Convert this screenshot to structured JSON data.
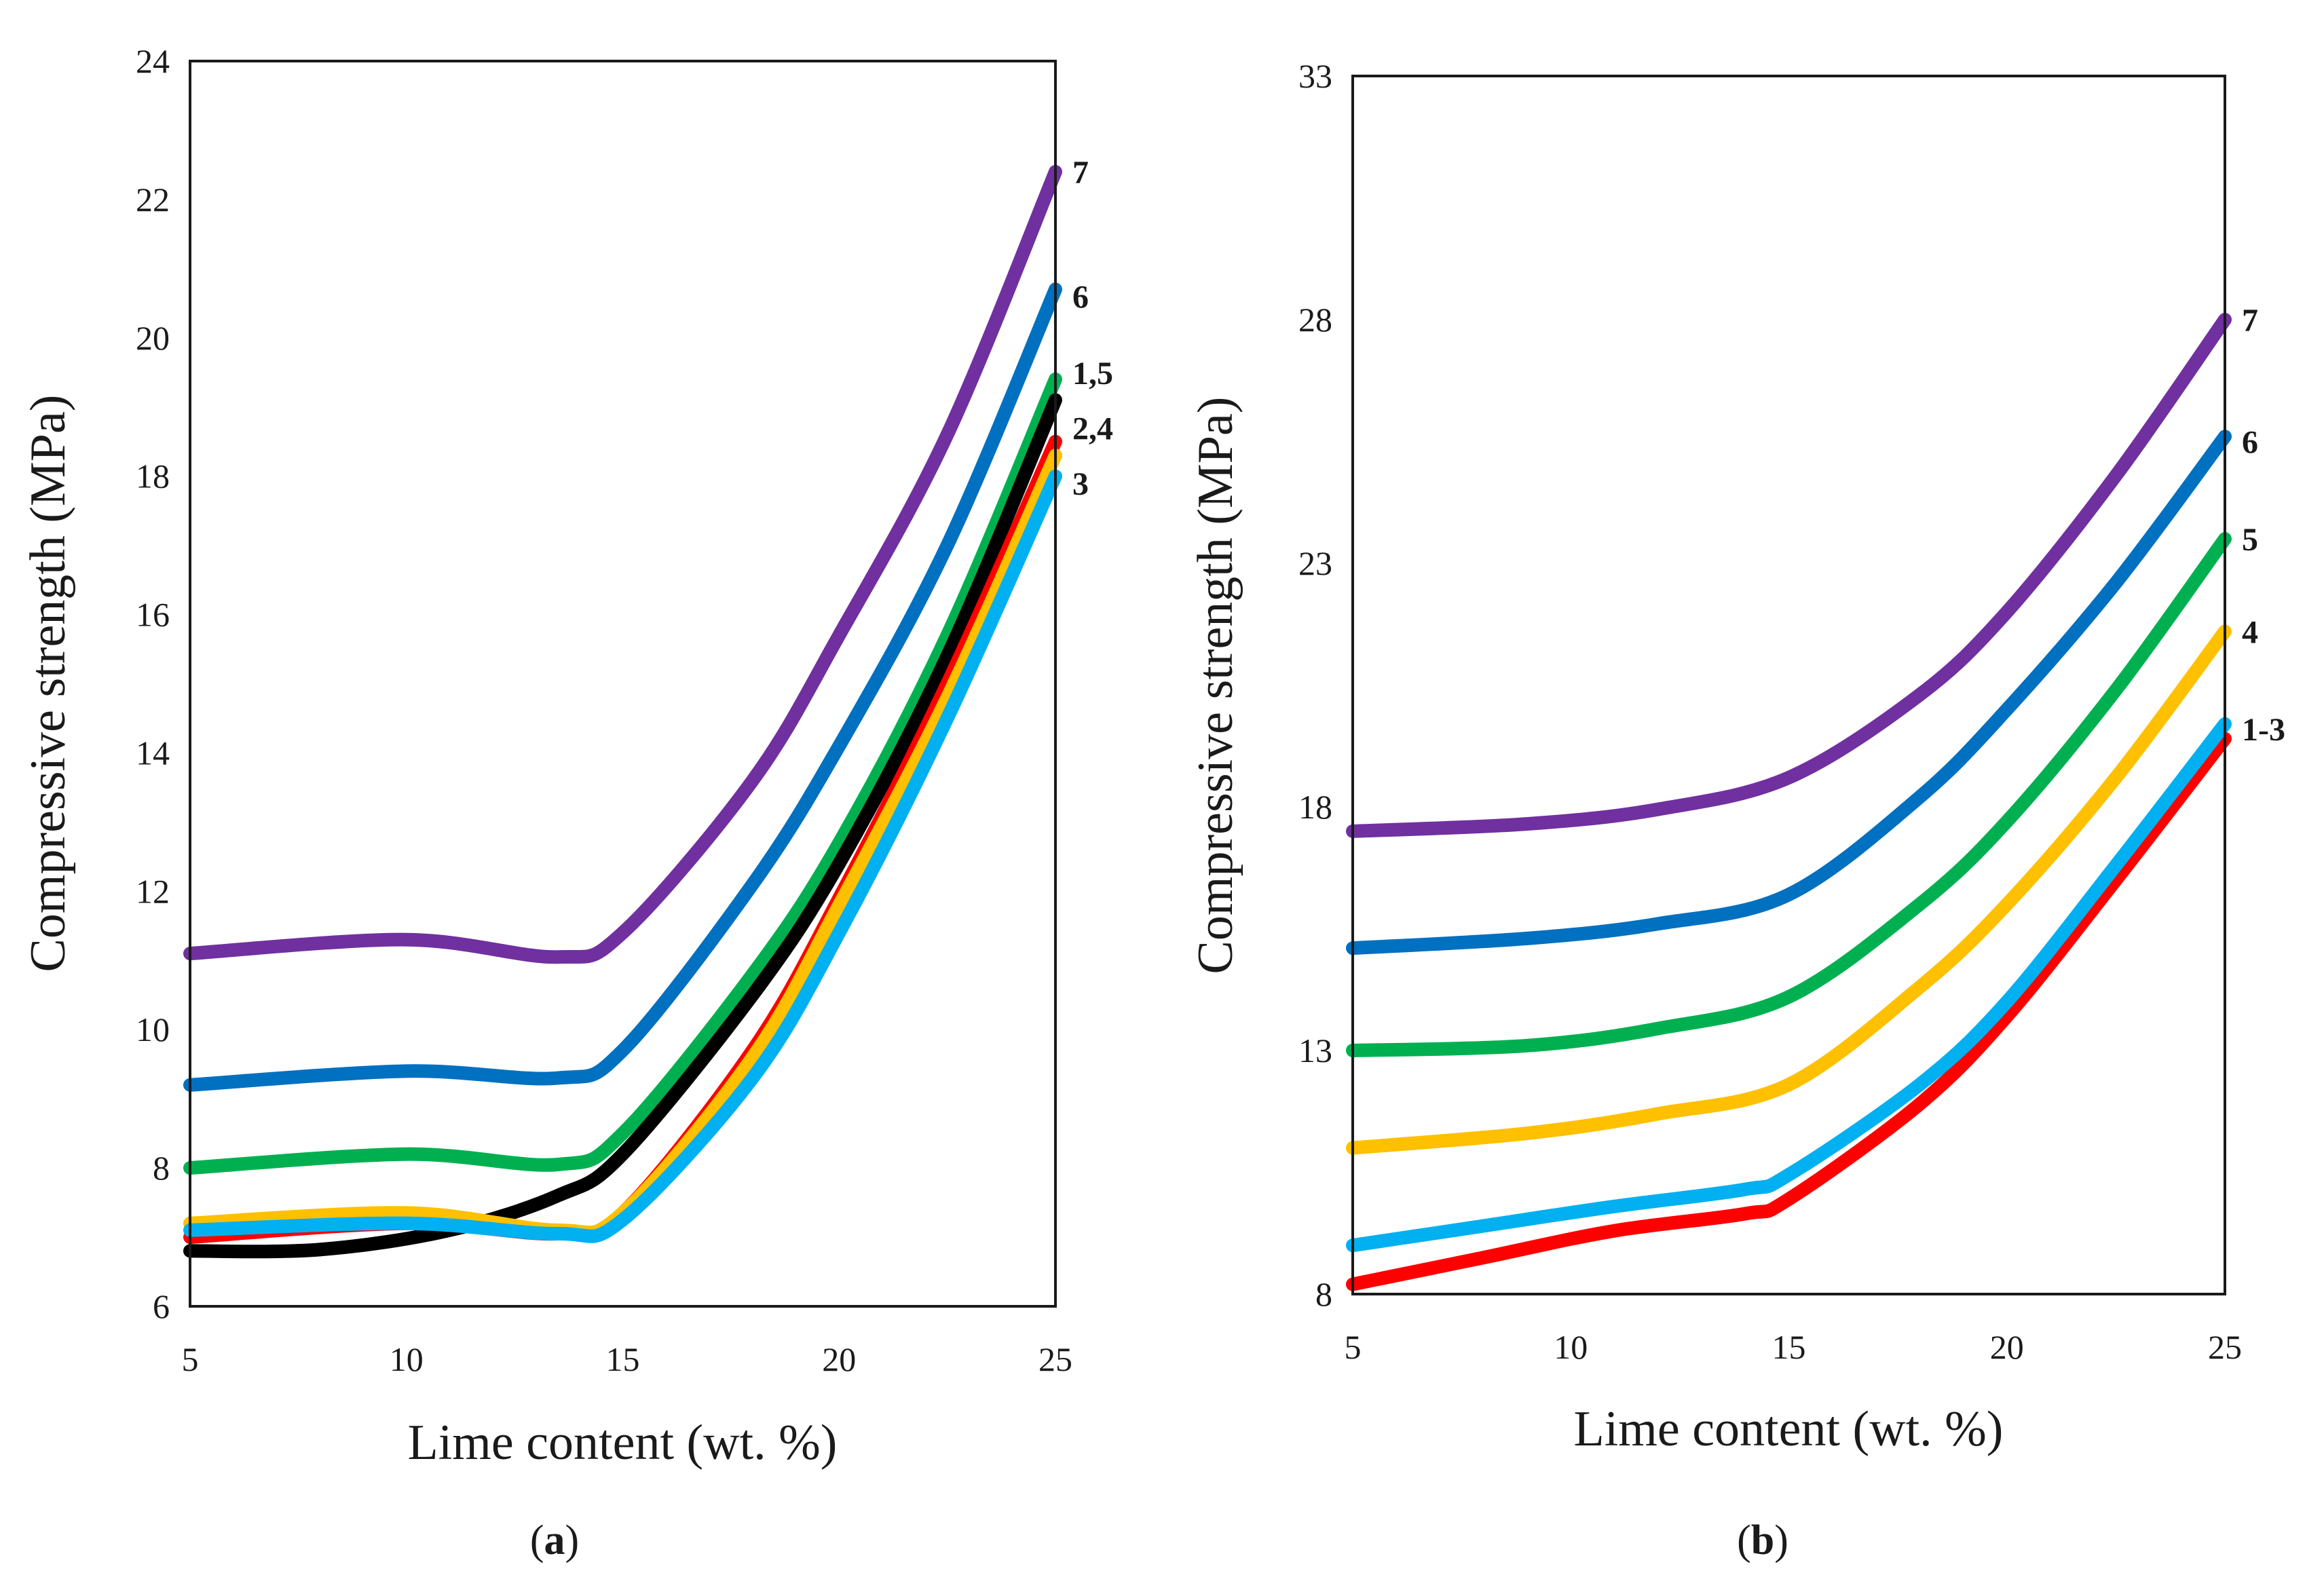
{
  "chart_data": [
    {
      "panel": "a",
      "type": "line",
      "xlabel": "Lime content (wt. %)",
      "ylabel": "Compressive strength (MPa)",
      "xlim": [
        5,
        25
      ],
      "ylim": [
        6,
        24
      ],
      "xticks": [
        5,
        10,
        15,
        20,
        25
      ],
      "yticks": [
        6,
        8,
        10,
        12,
        14,
        16,
        18,
        20,
        22,
        24
      ],
      "grid": false,
      "end_labels": [
        {
          "text": "7",
          "y": 22.4
        },
        {
          "text": "6",
          "y": 20.6
        },
        {
          "text": "1,5",
          "y": 19.5
        },
        {
          "text": "2,4",
          "y": 18.7
        },
        {
          "text": "3",
          "y": 17.9
        }
      ],
      "series": [
        {
          "color": "#7030a0",
          "x": [
            5,
            10,
            13.5,
            15,
            18,
            20,
            22.5,
            25
          ],
          "y": [
            11.1,
            11.3,
            11.05,
            11.4,
            13.6,
            15.7,
            18.6,
            22.4
          ]
        },
        {
          "color": "#0070c0",
          "x": [
            5,
            10,
            13.5,
            15,
            18,
            20,
            22.5,
            25
          ],
          "y": [
            9.2,
            9.4,
            9.3,
            9.7,
            12.1,
            14.1,
            17.0,
            20.7
          ]
        },
        {
          "color": "#00b050",
          "x": [
            5,
            10,
            13.5,
            15,
            18,
            20,
            22.5,
            25
          ],
          "y": [
            8.0,
            8.2,
            8.05,
            8.5,
            10.8,
            12.7,
            15.7,
            19.4
          ]
        },
        {
          "color": "#000000",
          "x": [
            5,
            8,
            11,
            13.5,
            15,
            18,
            20,
            22.5,
            25
          ],
          "y": [
            6.8,
            6.82,
            7.1,
            7.6,
            8.2,
            10.5,
            12.4,
            15.4,
            19.1
          ]
        },
        {
          "color": "#ff0000",
          "x": [
            5,
            10,
            13.5,
            15,
            18,
            20,
            22.5,
            25
          ],
          "y": [
            7.0,
            7.2,
            7.05,
            7.35,
            9.7,
            11.9,
            15.0,
            18.5
          ]
        },
        {
          "color": "#ffc000",
          "x": [
            5,
            10,
            13.5,
            15,
            18,
            20,
            22.5,
            25
          ],
          "y": [
            7.2,
            7.35,
            7.1,
            7.35,
            9.6,
            11.8,
            14.8,
            18.3
          ]
        },
        {
          "color": "#00b0f0",
          "x": [
            5,
            10,
            13.5,
            15,
            18,
            20,
            22.5,
            25
          ],
          "y": [
            7.1,
            7.2,
            7.05,
            7.25,
            9.3,
            11.4,
            14.5,
            18.0
          ]
        }
      ]
    },
    {
      "panel": "b",
      "type": "line",
      "xlabel": "Lime content (wt. %)",
      "ylabel": "Compressive strength (MPa)",
      "xlim": [
        5,
        25
      ],
      "ylim": [
        8,
        33
      ],
      "xticks": [
        5,
        10,
        15,
        20,
        25
      ],
      "yticks": [
        8,
        13,
        18,
        23,
        28,
        33
      ],
      "grid": false,
      "end_labels": [
        {
          "text": "7",
          "y": 28.0
        },
        {
          "text": "6",
          "y": 25.5
        },
        {
          "text": "5",
          "y": 23.5
        },
        {
          "text": "4",
          "y": 21.6
        },
        {
          "text": "1-3",
          "y": 19.6
        }
      ],
      "series": [
        {
          "color": "#7030a0",
          "x": [
            5,
            9,
            12,
            15,
            18,
            20,
            22.5,
            25
          ],
          "y": [
            17.5,
            17.65,
            17.95,
            18.6,
            20.3,
            22.0,
            24.8,
            28.0
          ]
        },
        {
          "color": "#0070c0",
          "x": [
            5,
            9,
            12,
            15,
            18,
            20,
            22.5,
            25
          ],
          "y": [
            15.1,
            15.3,
            15.6,
            16.2,
            18.2,
            20.0,
            22.6,
            25.6
          ]
        },
        {
          "color": "#00b050",
          "x": [
            5,
            9,
            12,
            15,
            18,
            20,
            22.5,
            25
          ],
          "y": [
            13.0,
            13.1,
            13.45,
            14.1,
            16.0,
            17.7,
            20.4,
            23.5
          ]
        },
        {
          "color": "#ffc000",
          "x": [
            5,
            9,
            12,
            15,
            18,
            20,
            22.5,
            25
          ],
          "y": [
            11.0,
            11.3,
            11.7,
            12.3,
            14.3,
            16.0,
            18.6,
            21.6
          ]
        },
        {
          "color": "#ff0000",
          "x": [
            5,
            8,
            11,
            14,
            15,
            18,
            20,
            22.5,
            25
          ],
          "y": [
            8.2,
            8.75,
            9.3,
            9.65,
            9.95,
            11.9,
            13.7,
            16.5,
            19.4
          ]
        },
        {
          "color": "#00b0f0",
          "x": [
            5,
            8,
            11,
            14,
            15,
            18,
            20,
            22.5,
            25
          ],
          "y": [
            9.0,
            9.4,
            9.8,
            10.15,
            10.45,
            12.3,
            14.0,
            16.8,
            19.7
          ]
        }
      ]
    }
  ],
  "captions": {
    "a": {
      "open": "(",
      "letter": "a",
      "close": ")"
    },
    "b": {
      "open": "(",
      "letter": "b",
      "close": ")"
    }
  }
}
